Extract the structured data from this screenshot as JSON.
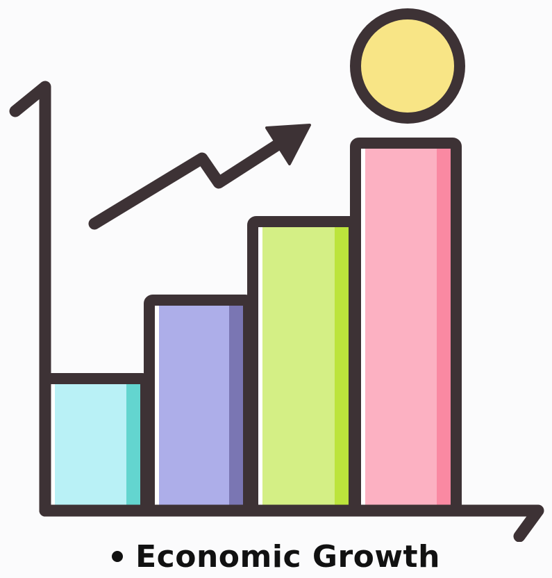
{
  "caption": {
    "text": "Economic Growth"
  },
  "icon": {
    "name": "economic-growth-bar-chart-icon",
    "bar_count": 4,
    "bar_levels": [
      1,
      2,
      3,
      4
    ],
    "trend": "upward",
    "colors": {
      "outline": "#3d3235",
      "bar1": "#b9f1f6",
      "bar1_shade": "#63d5cf",
      "bar2": "#adaee9",
      "bar2_shade": "#7a76b3",
      "bar3": "#d4ef85",
      "bar3_shade": "#bce43c",
      "bar4": "#fcb1c2",
      "bar4_shade": "#fa89a2",
      "coin": "#f8e586"
    }
  }
}
